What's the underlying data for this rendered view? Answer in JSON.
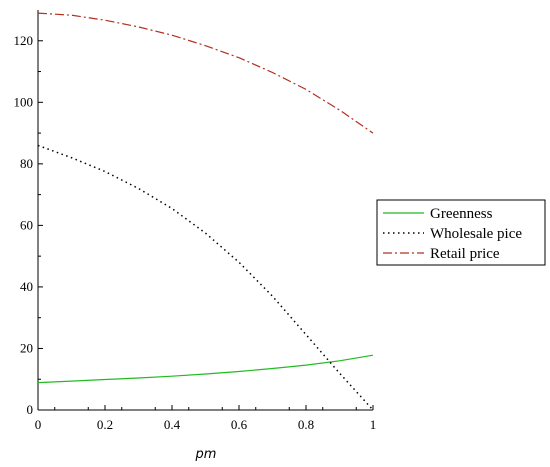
{
  "chart_data": {
    "type": "line",
    "title": "",
    "xlabel": "pm",
    "ylabel": "",
    "xlim": [
      0,
      1
    ],
    "ylim": [
      0,
      130
    ],
    "x_ticks": [
      0,
      0.2,
      0.4,
      0.6,
      0.8,
      1
    ],
    "x_tick_labels": [
      "0",
      "0.2",
      "0.4",
      "0.6",
      "0.8",
      "1"
    ],
    "y_ticks": [
      0,
      20,
      40,
      60,
      80,
      100,
      120
    ],
    "y_tick_labels": [
      "0",
      "20",
      "40",
      "60",
      "80",
      "100",
      "120"
    ],
    "grid": false,
    "legend_position": "right",
    "x": [
      0,
      0.1,
      0.2,
      0.3,
      0.4,
      0.5,
      0.6,
      0.7,
      0.8,
      0.9,
      1
    ],
    "series": [
      {
        "name": "Greenness",
        "color": "#22bb22",
        "style": "solid",
        "values": [
          8.9,
          9.4,
          9.9,
          10.4,
          11.0,
          11.7,
          12.5,
          13.5,
          14.6,
          16.0,
          17.8
        ]
      },
      {
        "name": "Wholesale pice",
        "color": "#000000",
        "style": "dotted",
        "values": [
          86,
          82,
          77.5,
          72,
          65.5,
          57.5,
          48,
          37,
          24.5,
          12,
          0
        ]
      },
      {
        "name": "Retail price",
        "color": "#b03020",
        "style": "dashdot",
        "values": [
          129,
          128.3,
          126.7,
          124.5,
          121.8,
          118.4,
          114.5,
          109.7,
          104.2,
          97.5,
          90
        ]
      }
    ]
  }
}
